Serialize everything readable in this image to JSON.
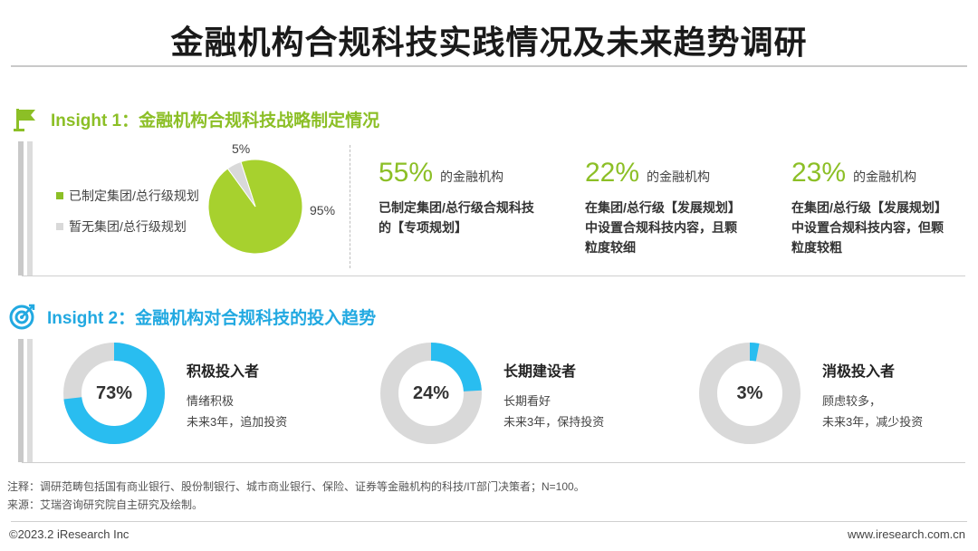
{
  "title": "金融机构合规科技实践情况及未来趋势调研",
  "insight1": {
    "heading": "Insight 1：金融机构合规科技战略制定情况",
    "legend": [
      "已制定集团/总行级规划",
      "暂无集团/总行级规划"
    ],
    "pie_labels": {
      "small": "5%",
      "large": "95%"
    },
    "stats": [
      {
        "value": "55%",
        "unit": "的金融机构",
        "desc": "已制定集团/总行级合规科技\n的【专项规划】"
      },
      {
        "value": "22%",
        "unit": "的金融机构",
        "desc": "在集团/总行级【发展规划】\n中设置合规科技内容，且颗\n粒度较细"
      },
      {
        "value": "23%",
        "unit": "的金融机构",
        "desc": "在集团/总行级【发展规划】\n中设置合规科技内容，但颗\n粒度较粗"
      }
    ]
  },
  "insight2": {
    "heading": "Insight 2：金融机构对合规科技的投入趋势",
    "groups": [
      {
        "pct": "73%",
        "head": "积极投入者",
        "l1": "情绪积极",
        "l2": "未来3年，追加投资"
      },
      {
        "pct": "24%",
        "head": "长期建设者",
        "l1": "长期看好",
        "l2": "未来3年，保持投资"
      },
      {
        "pct": "3%",
        "head": "消极投入者",
        "l1": "顾虑较多，",
        "l2": "未来3年，减少投资"
      }
    ]
  },
  "chart_data": [
    {
      "type": "pie",
      "categories": [
        "已制定集团/总行级规划",
        "暂无集团/总行级规划"
      ],
      "values": [
        95,
        5
      ],
      "colors": [
        "#a7d12e",
        "#d9d9d9"
      ],
      "legend": "left"
    },
    {
      "type": "pie",
      "categories": [
        "积极投入者",
        "长期建设者",
        "消极投入者"
      ],
      "values": [
        73,
        24,
        3
      ],
      "style": "donut",
      "colors": [
        "#29bdf0",
        "#d9d9d9"
      ]
    }
  ],
  "note": "注释：调研范畴包括国有商业银行、股份制银行、城市商业银行、保险、证券等金融机构的科技/IT部门决策者；N=100。",
  "source": "来源：艾瑞咨询研究院自主研究及绘制。",
  "copyright": "©2023.2 iResearch Inc",
  "website": "www.iresearch.com.cn",
  "colors": {
    "green": "#8cbf26",
    "blue": "#22a9e1",
    "pie_green": "#a7d12e",
    "donut_blue": "#29bdf0",
    "grey": "#d9d9d9"
  }
}
